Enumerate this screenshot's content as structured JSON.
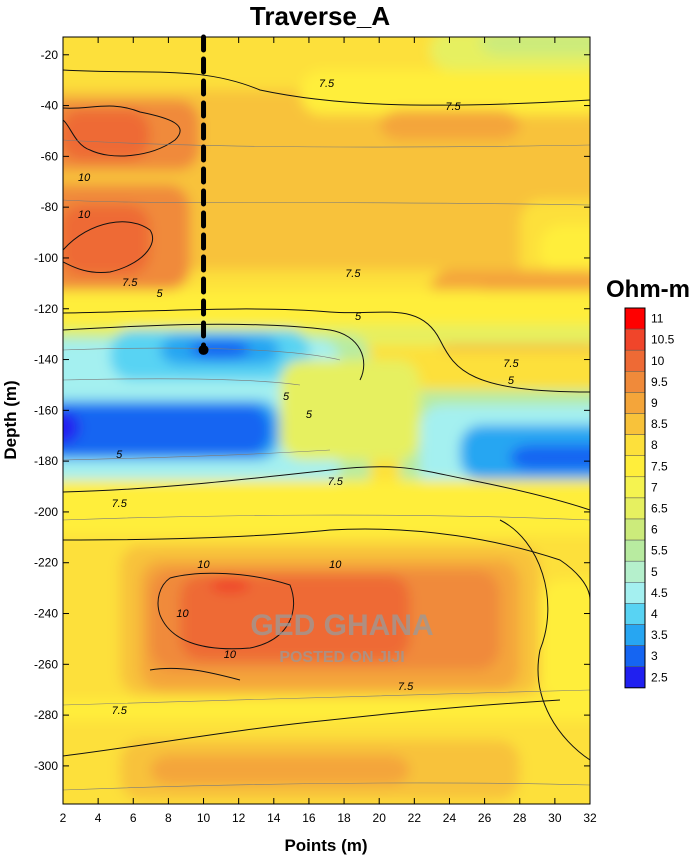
{
  "chart_data": {
    "type": "heatmap",
    "title": "Traverse_A",
    "xlabel": "Points (m)",
    "ylabel": "Depth (m)",
    "xlim": [
      2,
      32
    ],
    "ylim": [
      -315,
      -13
    ],
    "x_ticks": [
      2,
      4,
      6,
      8,
      10,
      12,
      14,
      16,
      18,
      20,
      22,
      24,
      26,
      28,
      30,
      32
    ],
    "y_ticks": [
      -20,
      -40,
      -60,
      -80,
      -100,
      -120,
      -140,
      -160,
      -180,
      -200,
      -220,
      -240,
      -260,
      -280,
      -300
    ],
    "colorbar": {
      "title": "Ohm-m",
      "levels": [
        11,
        10.5,
        10,
        9.5,
        9,
        8.5,
        8,
        7.5,
        7,
        6.5,
        6,
        5.5,
        5,
        4.5,
        4,
        3.5,
        3,
        2.5
      ],
      "colors": [
        "#ff0000",
        "#f0452a",
        "#ee6a35",
        "#f08a3a",
        "#f4a53a",
        "#f8c23a",
        "#fde03b",
        "#ffee3b",
        "#f5f350",
        "#e6f060",
        "#cceb7b",
        "#b8eba0",
        "#b5f0cc",
        "#a4f0f0",
        "#58d3f3",
        "#27a6f2",
        "#1565f2",
        "#2020f0"
      ]
    },
    "contour_labels": [
      {
        "text": "7.5",
        "x": 17,
        "y": -87
      },
      {
        "text": "7.5",
        "x": 24.2,
        "y": -110
      },
      {
        "text": "10",
        "x": 3.2,
        "y": -181
      },
      {
        "text": "10",
        "x": 3.2,
        "y": -218
      },
      {
        "text": "7.5",
        "x": 5.8,
        "y": -286
      },
      {
        "text": "7.5",
        "x": 18.5,
        "y": -277
      },
      {
        "text": "5",
        "x": 7.5,
        "y": -297
      },
      {
        "text": "5",
        "x": 18.8,
        "y": -320
      },
      {
        "text": "7.5",
        "x": 27.5,
        "y": -367
      },
      {
        "text": "5",
        "x": 27.5,
        "y": -384
      },
      {
        "text": "5",
        "x": 14.7,
        "y": -400
      },
      {
        "text": "5",
        "x": 16,
        "y": -418
      },
      {
        "text": "5",
        "x": 5.2,
        "y": -458
      },
      {
        "text": "7.5",
        "x": 17.5,
        "y": -485
      },
      {
        "text": "7.5",
        "x": 5.2,
        "y": -507
      },
      {
        "text": "10",
        "x": 10,
        "y": -568
      },
      {
        "text": "10",
        "x": 17.5,
        "y": -568
      },
      {
        "text": "10",
        "x": 8.8,
        "y": -617
      },
      {
        "text": "10",
        "x": 11.5,
        "y": -658
      },
      {
        "text": "7.5",
        "x": 21.5,
        "y": -690
      },
      {
        "text": "7.5",
        "x": 5.2,
        "y": -714
      }
    ],
    "survey_line": {
      "x": 10,
      "y_top": -13,
      "y_bottom": -137
    }
  },
  "watermark": {
    "line1": "GED GHANA",
    "line2": "POSTED ON JIJI"
  }
}
